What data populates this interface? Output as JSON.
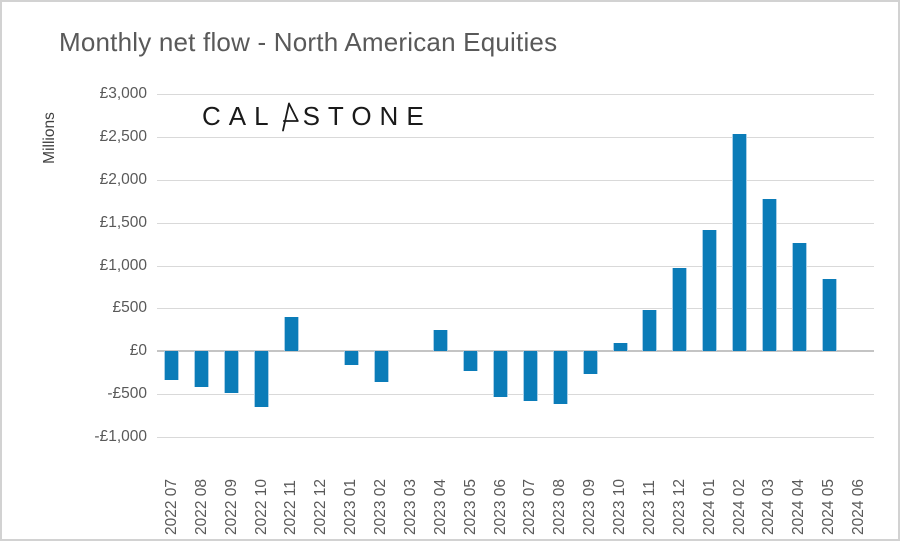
{
  "window": {
    "title": "Monthly net flow - North American Equities"
  },
  "logo": {
    "brand": "Calastone",
    "text_left": "CAL",
    "text_right": "STONE"
  },
  "colors": {
    "bar": "#0b7cb8",
    "bar_edge": "#a9cfe7",
    "gridline": "#d9d9d9",
    "zero_line": "#c4c4c4",
    "axis_text": "#595959",
    "title_text": "#595959",
    "logo_text": "#1a1a1a",
    "frame_border": "#d2d2d2",
    "background": "#ffffff"
  },
  "chart_data": {
    "type": "bar",
    "title": "Monthly net flow - North American Equities",
    "xlabel": "",
    "ylabel": "Millions",
    "currency": "£",
    "unit": "millions GBP",
    "ylim": [
      -1000,
      3000
    ],
    "ytick_step": 500,
    "ytick_labels": [
      "£3,000",
      "£2,500",
      "£2,000",
      "£1,500",
      "£1,000",
      "£500",
      "£0",
      "-£500",
      "-£1,000"
    ],
    "grid": true,
    "legend": "none",
    "bar_color": "#0b7cb8",
    "categories": [
      "2022 07",
      "2022 08",
      "2022 09",
      "2022 10",
      "2022 11",
      "2022 12",
      "2023 01",
      "2023 02",
      "2023 03",
      "2023 04",
      "2023 05",
      "2023 06",
      "2023 07",
      "2023 08",
      "2023 09",
      "2023 10",
      "2023 11",
      "2023 12",
      "2024 01",
      "2024 02",
      "2024 03",
      "2024 04",
      "2024 05",
      "2024 06"
    ],
    "values": [
      -330,
      -420,
      -490,
      -655,
      395,
      0,
      -155,
      -355,
      0,
      250,
      -235,
      -530,
      -580,
      -620,
      -260,
      95,
      485,
      975,
      1415,
      2530,
      1770,
      1260,
      845,
      0
    ]
  }
}
